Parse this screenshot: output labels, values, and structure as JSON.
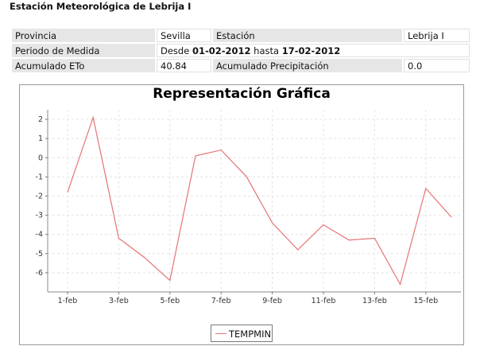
{
  "page": {
    "title": "Estación Meteorológica de Lebrija I"
  },
  "info": {
    "provincia_label": "Provincia",
    "provincia_value": "Sevilla",
    "estacion_label": "Estación",
    "estacion_value": "Lebrija I",
    "periodo_label": "Periodo de Medida",
    "periodo_desde": "Desde",
    "periodo_start": "01-02-2012",
    "periodo_hasta": "hasta",
    "periodo_end": "17-02-2012",
    "eto_label": "Acumulado ETo",
    "eto_value": "40.84",
    "precip_label": "Acumulado Precipitación",
    "precip_value": "0.0"
  },
  "colors": {
    "series": "#e57373",
    "grid": "#e4e4e4"
  },
  "chart_data": {
    "type": "line",
    "title": "Representación Gráfica",
    "xlabel": "",
    "ylabel": "",
    "x": [
      "1-feb",
      "2-feb",
      "3-feb",
      "4-feb",
      "5-feb",
      "6-feb",
      "7-feb",
      "8-feb",
      "9-feb",
      "10-feb",
      "11-feb",
      "12-feb",
      "13-feb",
      "14-feb",
      "15-feb",
      "16-feb"
    ],
    "x_tick_labels": [
      "1-feb",
      "3-feb",
      "5-feb",
      "7-feb",
      "9-feb",
      "11-feb",
      "13-feb",
      "15-feb"
    ],
    "series": [
      {
        "name": "TEMPMIN",
        "values": [
          -1.8,
          2.1,
          -4.2,
          -5.2,
          -6.4,
          0.1,
          0.4,
          -1.0,
          -3.4,
          -4.8,
          -3.5,
          -4.3,
          -4.2,
          -6.6,
          -1.6,
          -3.1
        ]
      }
    ],
    "ylim": [
      -7,
      2.5
    ],
    "y_ticks": [
      2,
      1,
      0,
      -1,
      -2,
      -3,
      -4,
      -5,
      -6
    ],
    "grid": true,
    "legend_position": "bottom-center"
  }
}
